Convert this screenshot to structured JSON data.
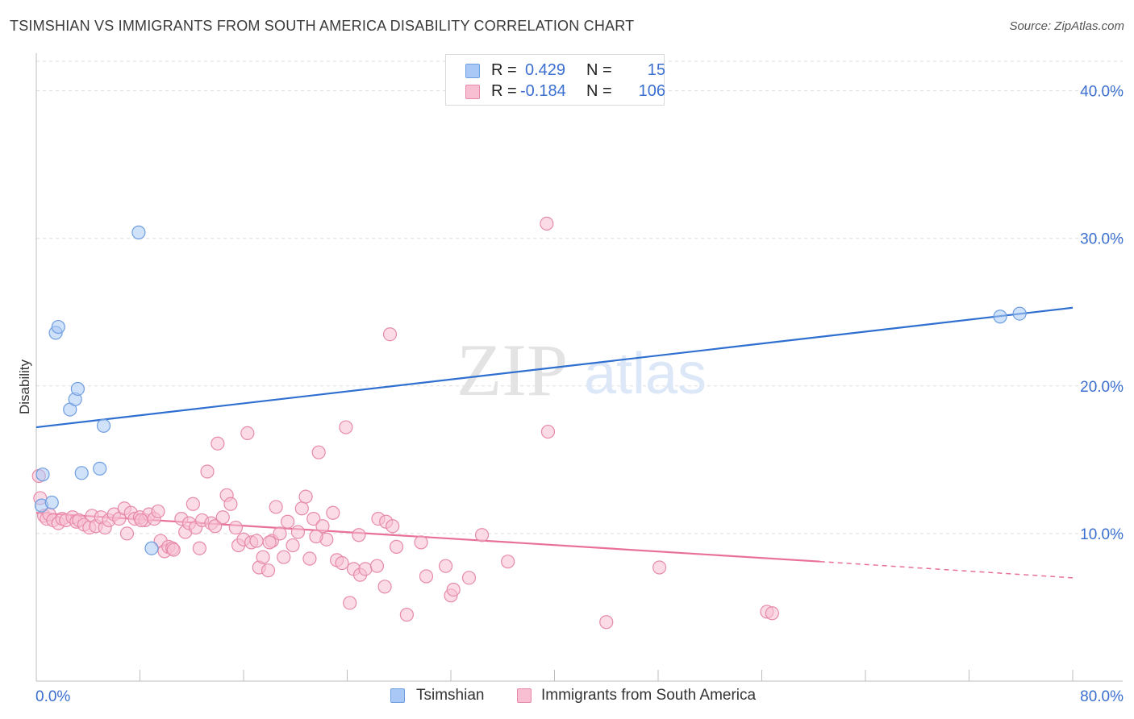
{
  "header": {
    "title": "TSIMSHIAN VS IMMIGRANTS FROM SOUTH AMERICA DISABILITY CORRELATION CHART",
    "source": "Source: ZipAtlas.com"
  },
  "legend_top": {
    "rows": [
      {
        "r_label": "R =",
        "r_value": "0.429",
        "n_label": "N =",
        "n_value": "15",
        "color": "#a9c8f5",
        "border": "#6e9ee0"
      },
      {
        "r_label": "R =",
        "r_value": "-0.184",
        "n_label": "N =",
        "n_value": "106",
        "color": "#f7bfd1",
        "border": "#e68aa9"
      }
    ]
  },
  "legend_bottom": [
    {
      "label": "Tsimshian",
      "color": "#a9c8f5",
      "border": "#6e9ee0"
    },
    {
      "label": "Immigrants from South America",
      "color": "#f7bfd1",
      "border": "#e68aa9"
    }
  ],
  "watermark": {
    "zip": "ZIP",
    "atlas": "atlas"
  },
  "chart_data": {
    "type": "scatter",
    "title": "TSIMSHIAN VS IMMIGRANTS FROM SOUTH AMERICA DISABILITY CORRELATION CHART",
    "xlabel": "",
    "ylabel": "Disability",
    "xlim": [
      0,
      80
    ],
    "ylim": [
      0,
      42
    ],
    "x_tick_labels": [
      "0.0%",
      "80.0%"
    ],
    "y_ticks": [
      10,
      20,
      30,
      40
    ],
    "y_tick_labels": [
      "10.0%",
      "20.0%",
      "30.0%",
      "40.0%"
    ],
    "grid": true,
    "series": [
      {
        "name": "Tsimshian",
        "color": "#a9c8f5",
        "stroke": "#6e9ee0",
        "line_color": "#2e6fd0",
        "trend": {
          "x": [
            0,
            80
          ],
          "y": [
            17.2,
            25.3
          ]
        },
        "points": [
          [
            0.5,
            14.0
          ],
          [
            0.4,
            11.9
          ],
          [
            1.2,
            12.1
          ],
          [
            1.5,
            23.6
          ],
          [
            1.7,
            24.0
          ],
          [
            2.6,
            18.4
          ],
          [
            3.0,
            19.1
          ],
          [
            3.2,
            19.8
          ],
          [
            3.5,
            14.1
          ],
          [
            4.9,
            14.4
          ],
          [
            5.2,
            17.3
          ],
          [
            7.9,
            30.4
          ],
          [
            8.9,
            9.0
          ],
          [
            74.4,
            24.7
          ],
          [
            75.9,
            24.9
          ]
        ]
      },
      {
        "name": "Immigrants from South America",
        "color": "#f7bfd1",
        "stroke": "#e68aa9",
        "line_color": "#e8709a",
        "trend": {
          "x": [
            0,
            60.5
          ],
          "y": [
            11.4,
            8.1
          ]
        },
        "trend_dashed": {
          "x": [
            60.5,
            80
          ],
          "y": [
            8.1,
            7.0
          ]
        },
        "points": [
          [
            0.2,
            13.9
          ],
          [
            0.3,
            12.4
          ],
          [
            0.6,
            11.2
          ],
          [
            0.8,
            11.0
          ],
          [
            1.0,
            11.3
          ],
          [
            1.3,
            10.9
          ],
          [
            1.7,
            10.7
          ],
          [
            2.0,
            11.0
          ],
          [
            2.3,
            10.9
          ],
          [
            2.8,
            11.1
          ],
          [
            3.1,
            10.8
          ],
          [
            3.3,
            10.9
          ],
          [
            3.7,
            10.6
          ],
          [
            4.1,
            10.4
          ],
          [
            4.3,
            11.2
          ],
          [
            4.6,
            10.5
          ],
          [
            5.0,
            11.1
          ],
          [
            5.3,
            10.4
          ],
          [
            5.6,
            10.9
          ],
          [
            6.0,
            11.3
          ],
          [
            6.4,
            11.0
          ],
          [
            6.8,
            11.7
          ],
          [
            7.0,
            10.0
          ],
          [
            7.3,
            11.4
          ],
          [
            7.6,
            11.0
          ],
          [
            8.0,
            11.1
          ],
          [
            8.4,
            10.9
          ],
          [
            8.7,
            11.3
          ],
          [
            9.1,
            11.0
          ],
          [
            9.4,
            11.5
          ],
          [
            9.6,
            9.5
          ],
          [
            9.9,
            8.8
          ],
          [
            10.2,
            9.1
          ],
          [
            10.5,
            9.0
          ],
          [
            10.6,
            8.9
          ],
          [
            11.2,
            11.0
          ],
          [
            11.5,
            10.1
          ],
          [
            11.8,
            10.7
          ],
          [
            12.1,
            12.0
          ],
          [
            12.3,
            10.4
          ],
          [
            12.6,
            9.0
          ],
          [
            12.8,
            10.9
          ],
          [
            13.2,
            14.2
          ],
          [
            13.5,
            10.7
          ],
          [
            13.8,
            10.5
          ],
          [
            14.0,
            16.1
          ],
          [
            14.4,
            11.1
          ],
          [
            14.7,
            12.6
          ],
          [
            15.0,
            12.0
          ],
          [
            15.4,
            10.4
          ],
          [
            15.6,
            9.2
          ],
          [
            16.0,
            9.6
          ],
          [
            16.3,
            16.8
          ],
          [
            16.6,
            9.4
          ],
          [
            17.0,
            9.5
          ],
          [
            17.2,
            7.7
          ],
          [
            17.5,
            8.4
          ],
          [
            17.9,
            7.5
          ],
          [
            18.2,
            9.5
          ],
          [
            18.5,
            11.8
          ],
          [
            18.8,
            10.0
          ],
          [
            19.1,
            8.4
          ],
          [
            19.4,
            10.8
          ],
          [
            19.8,
            9.2
          ],
          [
            20.2,
            10.1
          ],
          [
            20.5,
            11.7
          ],
          [
            20.8,
            12.5
          ],
          [
            21.1,
            8.3
          ],
          [
            21.4,
            11.0
          ],
          [
            21.8,
            15.5
          ],
          [
            22.1,
            10.5
          ],
          [
            22.4,
            9.6
          ],
          [
            22.9,
            11.4
          ],
          [
            23.2,
            8.2
          ],
          [
            23.6,
            8.0
          ],
          [
            23.9,
            17.2
          ],
          [
            24.2,
            5.3
          ],
          [
            24.5,
            7.6
          ],
          [
            24.9,
            9.9
          ],
          [
            25.0,
            7.2
          ],
          [
            25.4,
            7.6
          ],
          [
            26.3,
            7.8
          ],
          [
            26.4,
            11.0
          ],
          [
            26.9,
            6.4
          ],
          [
            27.0,
            10.8
          ],
          [
            27.3,
            23.5
          ],
          [
            27.5,
            10.5
          ],
          [
            27.8,
            9.1
          ],
          [
            28.6,
            4.5
          ],
          [
            29.7,
            9.4
          ],
          [
            30.1,
            7.1
          ],
          [
            31.6,
            7.8
          ],
          [
            32.0,
            5.8
          ],
          [
            32.2,
            6.2
          ],
          [
            33.4,
            7.0
          ],
          [
            34.4,
            9.9
          ],
          [
            36.4,
            8.1
          ],
          [
            39.4,
            31.0
          ],
          [
            39.5,
            16.9
          ],
          [
            44.0,
            4.0
          ],
          [
            48.1,
            7.7
          ],
          [
            56.4,
            4.7
          ],
          [
            56.8,
            4.6
          ],
          [
            18.0,
            9.4
          ],
          [
            21.6,
            9.8
          ],
          [
            8.1,
            10.9
          ]
        ]
      }
    ]
  }
}
